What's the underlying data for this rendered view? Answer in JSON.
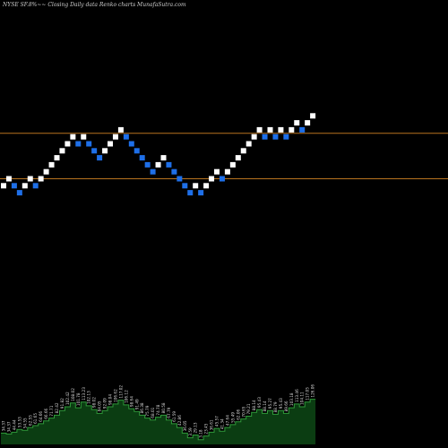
{
  "chart_data": {
    "type": "renko",
    "title": "NYSE SF.8%~~ Closing Daily data  Renko  charts MunafaSutra.com",
    "reference_lines": [
      {
        "label": "",
        "value": 1,
        "color": "#b8731f"
      },
      {
        "label": "",
        "value": 0,
        "color": "#b8731f"
      }
    ],
    "bricks": [
      {
        "level": -1,
        "dir": "up"
      },
      {
        "level": 0,
        "dir": "up"
      },
      {
        "level": -1,
        "dir": "down"
      },
      {
        "level": -2,
        "dir": "down"
      },
      {
        "level": -1,
        "dir": "up"
      },
      {
        "level": 0,
        "dir": "up"
      },
      {
        "level": -1,
        "dir": "down"
      },
      {
        "level": 0,
        "dir": "up"
      },
      {
        "level": 1,
        "dir": "up"
      },
      {
        "level": 2,
        "dir": "up"
      },
      {
        "level": 3,
        "dir": "up"
      },
      {
        "level": 4,
        "dir": "up"
      },
      {
        "level": 5,
        "dir": "up"
      },
      {
        "level": 6,
        "dir": "up"
      },
      {
        "level": 5,
        "dir": "down"
      },
      {
        "level": 6,
        "dir": "up"
      },
      {
        "level": 5,
        "dir": "down"
      },
      {
        "level": 4,
        "dir": "down"
      },
      {
        "level": 3,
        "dir": "down"
      },
      {
        "level": 4,
        "dir": "up"
      },
      {
        "level": 5,
        "dir": "up"
      },
      {
        "level": 6,
        "dir": "up"
      },
      {
        "level": 7,
        "dir": "up"
      },
      {
        "level": 6,
        "dir": "down"
      },
      {
        "level": 5,
        "dir": "down"
      },
      {
        "level": 4,
        "dir": "down"
      },
      {
        "level": 3,
        "dir": "down"
      },
      {
        "level": 2,
        "dir": "down"
      },
      {
        "level": 1,
        "dir": "down"
      },
      {
        "level": 2,
        "dir": "up"
      },
      {
        "level": 3,
        "dir": "up"
      },
      {
        "level": 2,
        "dir": "down"
      },
      {
        "level": 1,
        "dir": "down"
      },
      {
        "level": 0,
        "dir": "down"
      },
      {
        "level": -1,
        "dir": "down"
      },
      {
        "level": -2,
        "dir": "down"
      },
      {
        "level": -1,
        "dir": "up"
      },
      {
        "level": -2,
        "dir": "down"
      },
      {
        "level": -1,
        "dir": "up"
      },
      {
        "level": 0,
        "dir": "up"
      },
      {
        "level": 1,
        "dir": "up"
      },
      {
        "level": 0,
        "dir": "down"
      },
      {
        "level": 1,
        "dir": "up"
      },
      {
        "level": 2,
        "dir": "up"
      },
      {
        "level": 3,
        "dir": "up"
      },
      {
        "level": 4,
        "dir": "up"
      },
      {
        "level": 5,
        "dir": "up"
      },
      {
        "level": 6,
        "dir": "up"
      },
      {
        "level": 7,
        "dir": "up"
      },
      {
        "level": 6,
        "dir": "down"
      },
      {
        "level": 7,
        "dir": "up"
      },
      {
        "level": 6,
        "dir": "down"
      },
      {
        "level": 7,
        "dir": "up"
      },
      {
        "level": 6,
        "dir": "down"
      },
      {
        "level": 7,
        "dir": "up"
      },
      {
        "level": 8,
        "dir": "up"
      },
      {
        "level": 7,
        "dir": "down"
      },
      {
        "level": 8,
        "dir": "up"
      },
      {
        "level": 9,
        "dir": "up"
      }
    ],
    "volume": [
      {
        "value": 12,
        "label": "34.37"
      },
      {
        "value": 11,
        "label": "34.37"
      },
      {
        "value": 13,
        "label": "44.44"
      },
      {
        "value": 16,
        "label": "53.53"
      },
      {
        "value": 15,
        "label": "54.55"
      },
      {
        "value": 18,
        "label": "62.55"
      },
      {
        "value": 20,
        "label": "61.65"
      },
      {
        "value": 22,
        "label": "64.66"
      },
      {
        "value": 25,
        "label": "66.66"
      },
      {
        "value": 28,
        "label": "71.71"
      },
      {
        "value": 31,
        "label": "82.42"
      },
      {
        "value": 36,
        "label": "91.82"
      },
      {
        "value": 40,
        "label": "102.42"
      },
      {
        "value": 44,
        "label": "108.02"
      },
      {
        "value": 39,
        "label": "101.78"
      },
      {
        "value": 45,
        "label": "113.23"
      },
      {
        "value": 41,
        "label": "102.13"
      },
      {
        "value": 37,
        "label": "98.02"
      },
      {
        "value": 33,
        "label": "84.05"
      },
      {
        "value": 36,
        "label": "92.09"
      },
      {
        "value": 40,
        "label": "98.04"
      },
      {
        "value": 43,
        "label": "106.62"
      },
      {
        "value": 47,
        "label": "117.02"
      },
      {
        "value": 42,
        "label": "106.12"
      },
      {
        "value": 38,
        "label": "98.64"
      },
      {
        "value": 35,
        "label": "91.49"
      },
      {
        "value": 31,
        "label": "86.38"
      },
      {
        "value": 28,
        "label": "75.79"
      },
      {
        "value": 26,
        "label": "68.01"
      },
      {
        "value": 29,
        "label": "74.78"
      },
      {
        "value": 31,
        "label": "80.58"
      },
      {
        "value": 26,
        "label": "67.79"
      },
      {
        "value": 22,
        "label": "61.59"
      },
      {
        "value": 18,
        "label": "42.86"
      },
      {
        "value": 12,
        "label": "36.05"
      },
      {
        "value": 7,
        "label": "3.59"
      },
      {
        "value": 10,
        "label": "29.13"
      },
      {
        "value": 5,
        "label": "3.18"
      },
      {
        "value": 9,
        "label": "23.45"
      },
      {
        "value": 13,
        "label": "36.61"
      },
      {
        "value": 17,
        "label": "45.57"
      },
      {
        "value": 14,
        "label": "41.34"
      },
      {
        "value": 18,
        "label": "47.64"
      },
      {
        "value": 21,
        "label": "55.49"
      },
      {
        "value": 24,
        "label": "62.06"
      },
      {
        "value": 27,
        "label": "70.65"
      },
      {
        "value": 30,
        "label": "79.21"
      },
      {
        "value": 34,
        "label": "88.14"
      },
      {
        "value": 37,
        "label": "95.43"
      },
      {
        "value": 33,
        "label": "88.14"
      },
      {
        "value": 36,
        "label": "95.27"
      },
      {
        "value": 32,
        "label": "88.79"
      },
      {
        "value": 36,
        "label": "95.43"
      },
      {
        "value": 33,
        "label": "89.66"
      },
      {
        "value": 39,
        "label": "103.18"
      },
      {
        "value": 43,
        "label": "113.46"
      },
      {
        "value": 40,
        "label": "104.11"
      },
      {
        "value": 45,
        "label": "117.05"
      },
      {
        "value": 48,
        "label": "126.06"
      }
    ],
    "colors": {
      "up_brick": "#ffffff",
      "down_brick": "#1e6fe8",
      "volume_fill": "#0b3d12",
      "volume_top": "#2f9a3a",
      "label_text": "#d9d9d9"
    },
    "grid": false,
    "legend": "none"
  }
}
